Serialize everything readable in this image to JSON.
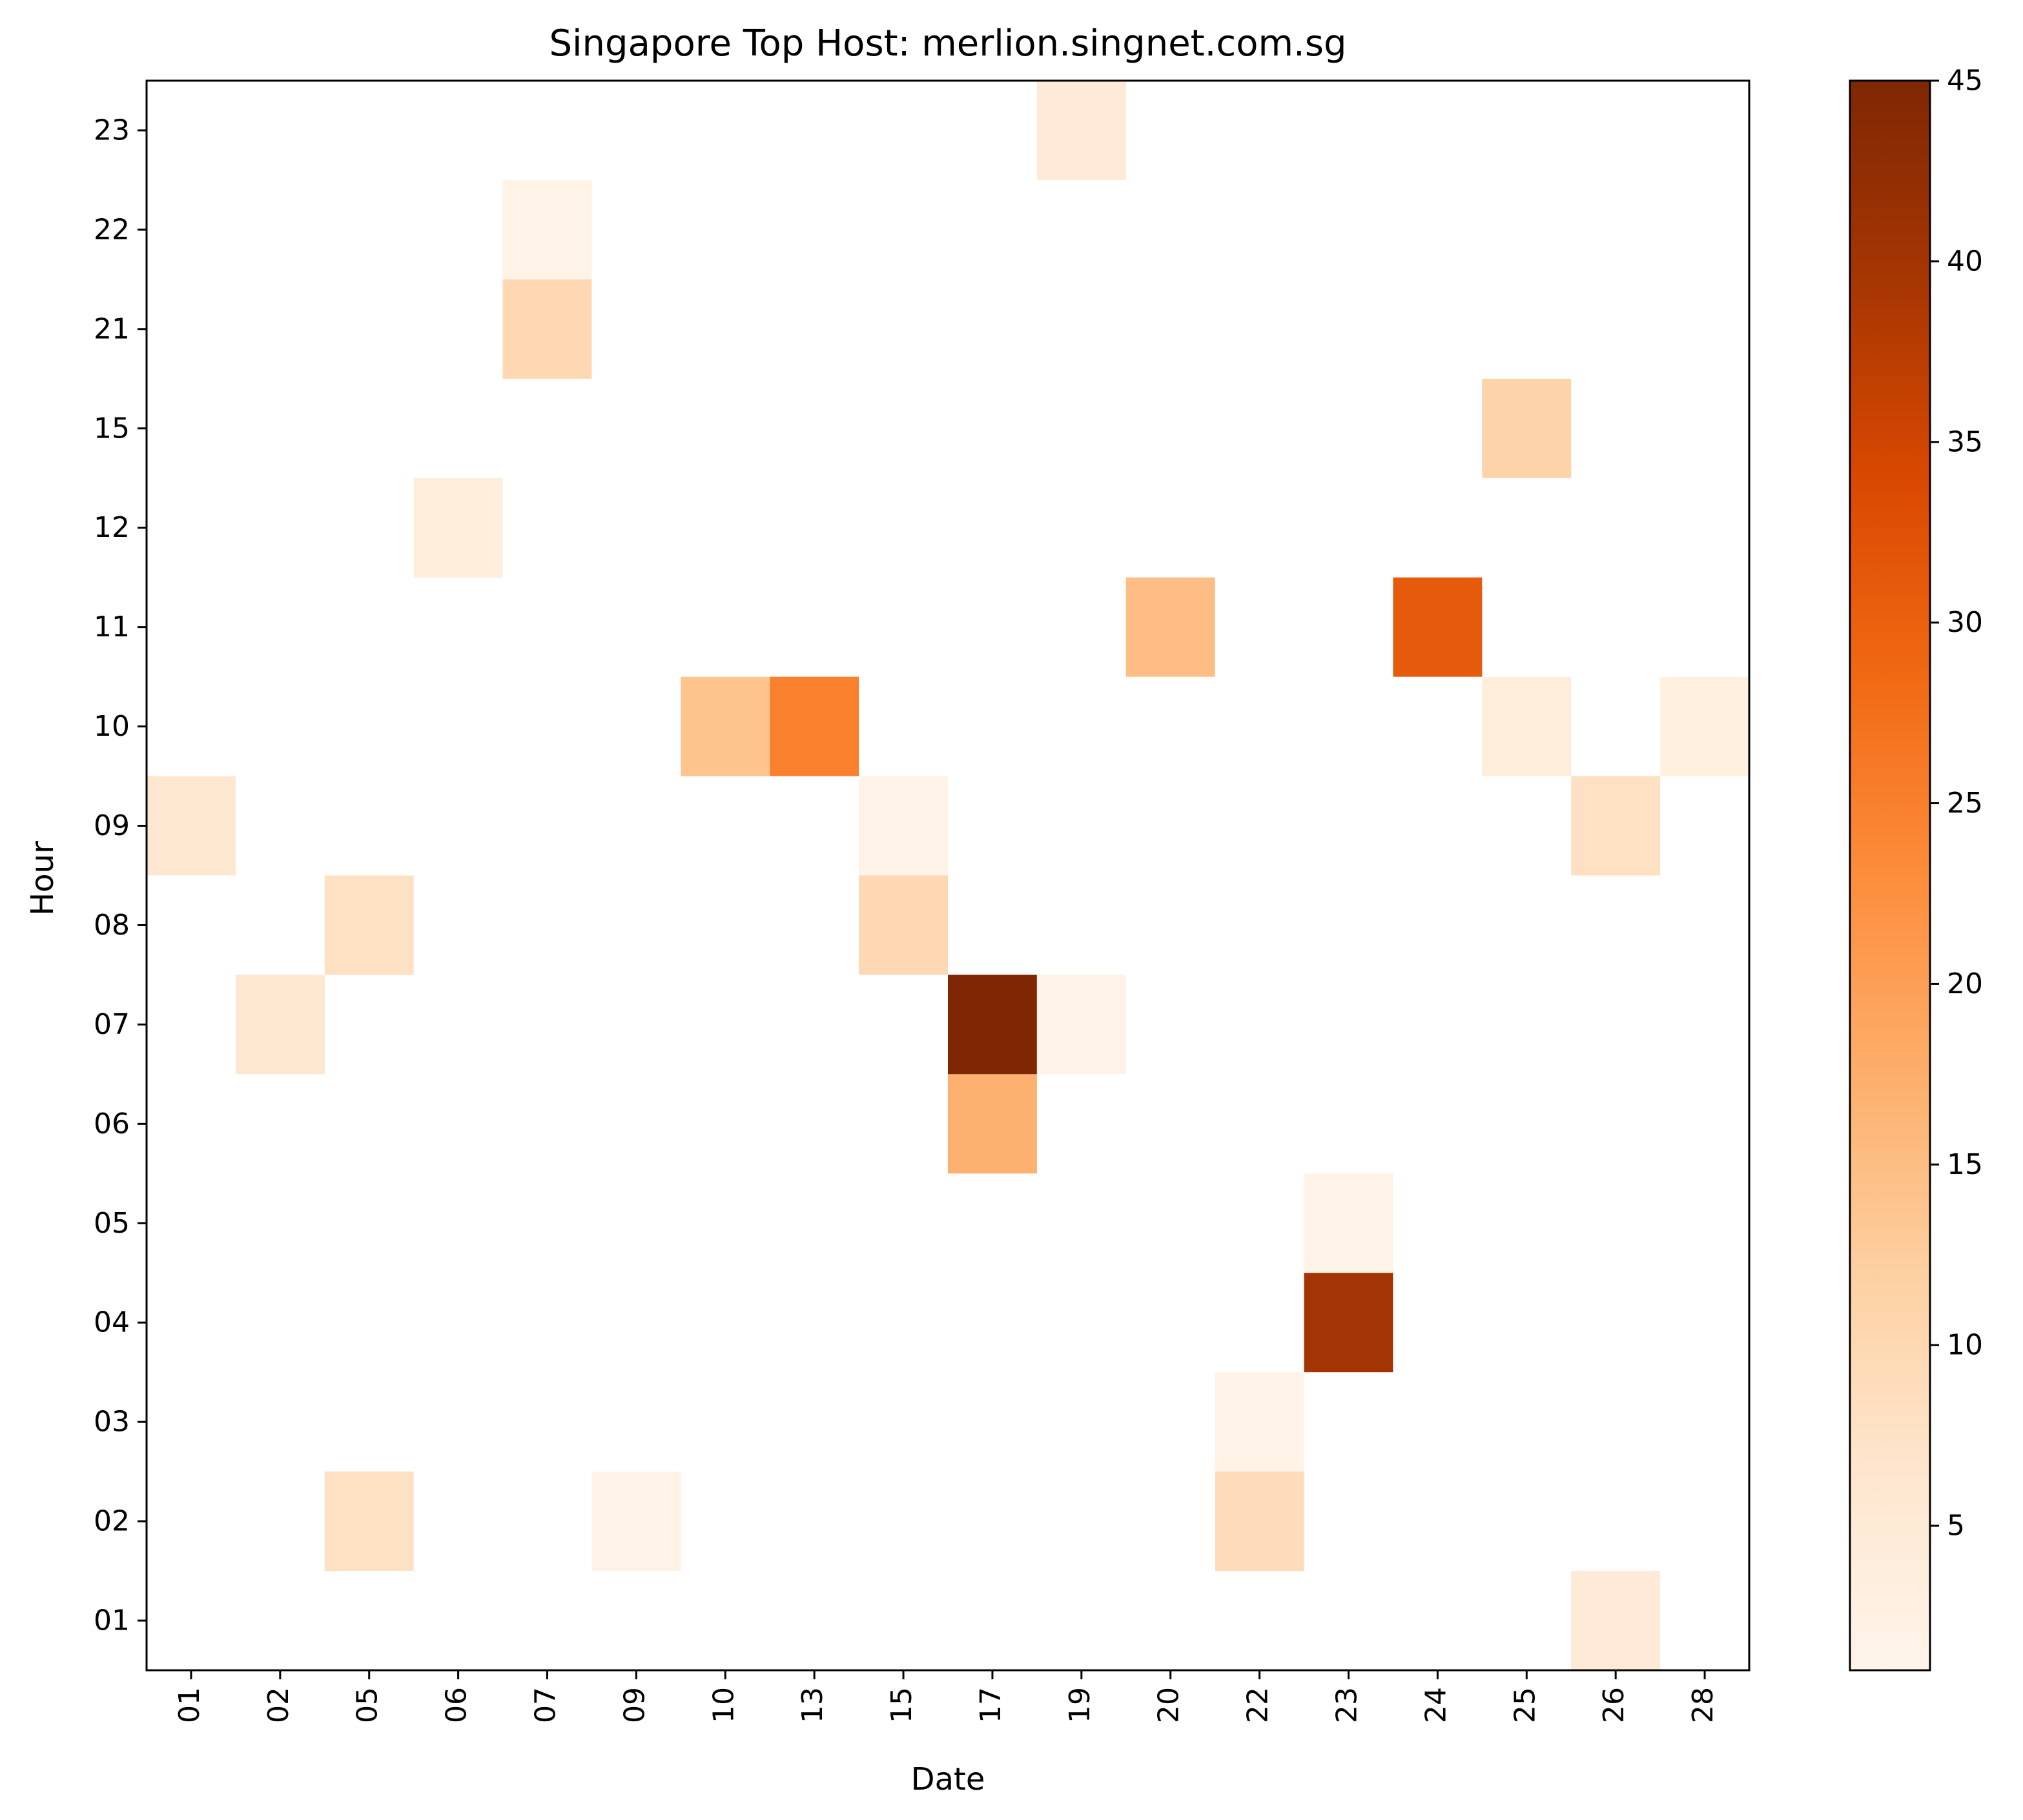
{
  "chart_data": {
    "type": "heatmap",
    "title": "Singapore Top Host: merlion.singnet.com.sg",
    "xlabel": "Date",
    "ylabel": "Hour",
    "x_categories": [
      "01",
      "02",
      "05",
      "06",
      "07",
      "09",
      "10",
      "13",
      "15",
      "17",
      "19",
      "20",
      "22",
      "23",
      "24",
      "25",
      "26",
      "28"
    ],
    "y_categories": [
      "01",
      "02",
      "03",
      "04",
      "05",
      "06",
      "07",
      "08",
      "09",
      "10",
      "11",
      "12",
      "15",
      "21",
      "22",
      "23"
    ],
    "cells": [
      {
        "x": "01",
        "y": "09",
        "value": 6
      },
      {
        "x": "02",
        "y": "07",
        "value": 6
      },
      {
        "x": "05",
        "y": "08",
        "value": 8
      },
      {
        "x": "05",
        "y": "02",
        "value": 8
      },
      {
        "x": "06",
        "y": "12",
        "value": 4
      },
      {
        "x": "07",
        "y": "22",
        "value": 2
      },
      {
        "x": "07",
        "y": "21",
        "value": 10
      },
      {
        "x": "09",
        "y": "02",
        "value": 2
      },
      {
        "x": "10",
        "y": "10",
        "value": 14
      },
      {
        "x": "13",
        "y": "10",
        "value": 25
      },
      {
        "x": "15",
        "y": "09",
        "value": 2
      },
      {
        "x": "15",
        "y": "08",
        "value": 10
      },
      {
        "x": "17",
        "y": "07",
        "value": 45
      },
      {
        "x": "17",
        "y": "06",
        "value": 17
      },
      {
        "x": "19",
        "y": "07",
        "value": 2
      },
      {
        "x": "19",
        "y": "23",
        "value": 5
      },
      {
        "x": "20",
        "y": "11",
        "value": 15
      },
      {
        "x": "22",
        "y": "03",
        "value": 2
      },
      {
        "x": "22",
        "y": "02",
        "value": 9
      },
      {
        "x": "23",
        "y": "05",
        "value": 2
      },
      {
        "x": "23",
        "y": "04",
        "value": 40
      },
      {
        "x": "24",
        "y": "11",
        "value": 31
      },
      {
        "x": "25",
        "y": "15",
        "value": 11
      },
      {
        "x": "25",
        "y": "10",
        "value": 4
      },
      {
        "x": "26",
        "y": "09",
        "value": 8
      },
      {
        "x": "26",
        "y": "01",
        "value": 5
      },
      {
        "x": "28",
        "y": "10",
        "value": 3
      }
    ],
    "colorbar": {
      "min": 1,
      "max": 45,
      "ticks": [
        5,
        10,
        15,
        20,
        25,
        30,
        35,
        40,
        45
      ],
      "colormap": "Oranges"
    },
    "grid": false,
    "legend": "none"
  }
}
